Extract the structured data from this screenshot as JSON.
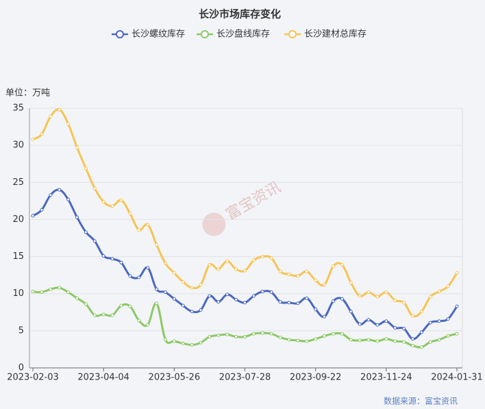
{
  "chart_data": {
    "type": "line",
    "title": "长沙市场库存变化",
    "unit_label": "单位：万吨",
    "source": "数据来源：富宝资讯",
    "watermark": "富宝资讯",
    "categories": [
      "2023-02-03",
      null,
      null,
      null,
      null,
      null,
      null,
      null,
      "2023-04-04",
      null,
      null,
      null,
      null,
      null,
      null,
      null,
      "2023-05-26",
      null,
      null,
      null,
      null,
      null,
      null,
      null,
      "2023-07-28",
      null,
      null,
      null,
      null,
      null,
      null,
      null,
      "2023-09-22",
      null,
      null,
      null,
      null,
      null,
      null,
      null,
      "2023-11-24",
      null,
      null,
      null,
      null,
      null,
      null,
      null,
      "2024-01-31"
    ],
    "series": [
      {
        "name": "长沙螺纹库存",
        "color": "#4a68c0",
        "values": [
          20.5,
          21.3,
          23.3,
          24.0,
          22.7,
          20.3,
          18.3,
          17.1,
          15.1,
          14.7,
          14.2,
          12.4,
          12.2,
          13.5,
          10.6,
          10.2,
          9.3,
          8.4,
          7.6,
          7.8,
          9.7,
          8.9,
          9.9,
          9.2,
          8.8,
          9.7,
          10.3,
          10.2,
          8.9,
          8.8,
          8.7,
          9.4,
          7.9,
          6.9,
          9.0,
          9.3,
          7.6,
          5.9,
          6.5,
          5.8,
          6.3,
          5.4,
          5.3,
          3.9,
          4.8,
          6.1,
          6.3,
          6.6,
          8.3
        ]
      },
      {
        "name": "长沙盘线库存",
        "color": "#8cc866",
        "values": [
          10.3,
          10.2,
          10.6,
          10.8,
          10.2,
          9.4,
          8.6,
          7.1,
          7.2,
          7.1,
          8.4,
          8.3,
          6.4,
          5.8,
          8.7,
          3.8,
          3.6,
          3.3,
          3.1,
          3.4,
          4.2,
          4.4,
          4.5,
          4.2,
          4.2,
          4.6,
          4.7,
          4.6,
          4.1,
          3.8,
          3.7,
          3.6,
          3.9,
          4.3,
          4.6,
          4.6,
          3.8,
          3.7,
          3.8,
          3.6,
          3.9,
          3.6,
          3.5,
          3.0,
          2.8,
          3.5,
          3.8,
          4.3,
          4.6
        ]
      },
      {
        "name": "长沙建材总库存",
        "color": "#f6c453",
        "values": [
          30.8,
          31.5,
          33.9,
          34.8,
          32.9,
          29.7,
          26.9,
          24.2,
          22.4,
          21.8,
          22.6,
          20.8,
          18.6,
          19.3,
          16.6,
          14.1,
          12.8,
          11.6,
          10.8,
          11.2,
          13.9,
          13.3,
          14.4,
          13.3,
          13.1,
          14.5,
          15.0,
          14.8,
          13.0,
          12.6,
          12.4,
          13.0,
          11.8,
          11.2,
          13.7,
          13.9,
          11.5,
          9.7,
          10.2,
          9.6,
          10.2,
          9.1,
          8.8,
          7.0,
          7.6,
          9.6,
          10.3,
          11.0,
          12.8
        ]
      }
    ],
    "ylim": [
      0,
      35
    ],
    "yticks": [
      0,
      5,
      10,
      15,
      20,
      25,
      30,
      35
    ],
    "grid": true
  }
}
